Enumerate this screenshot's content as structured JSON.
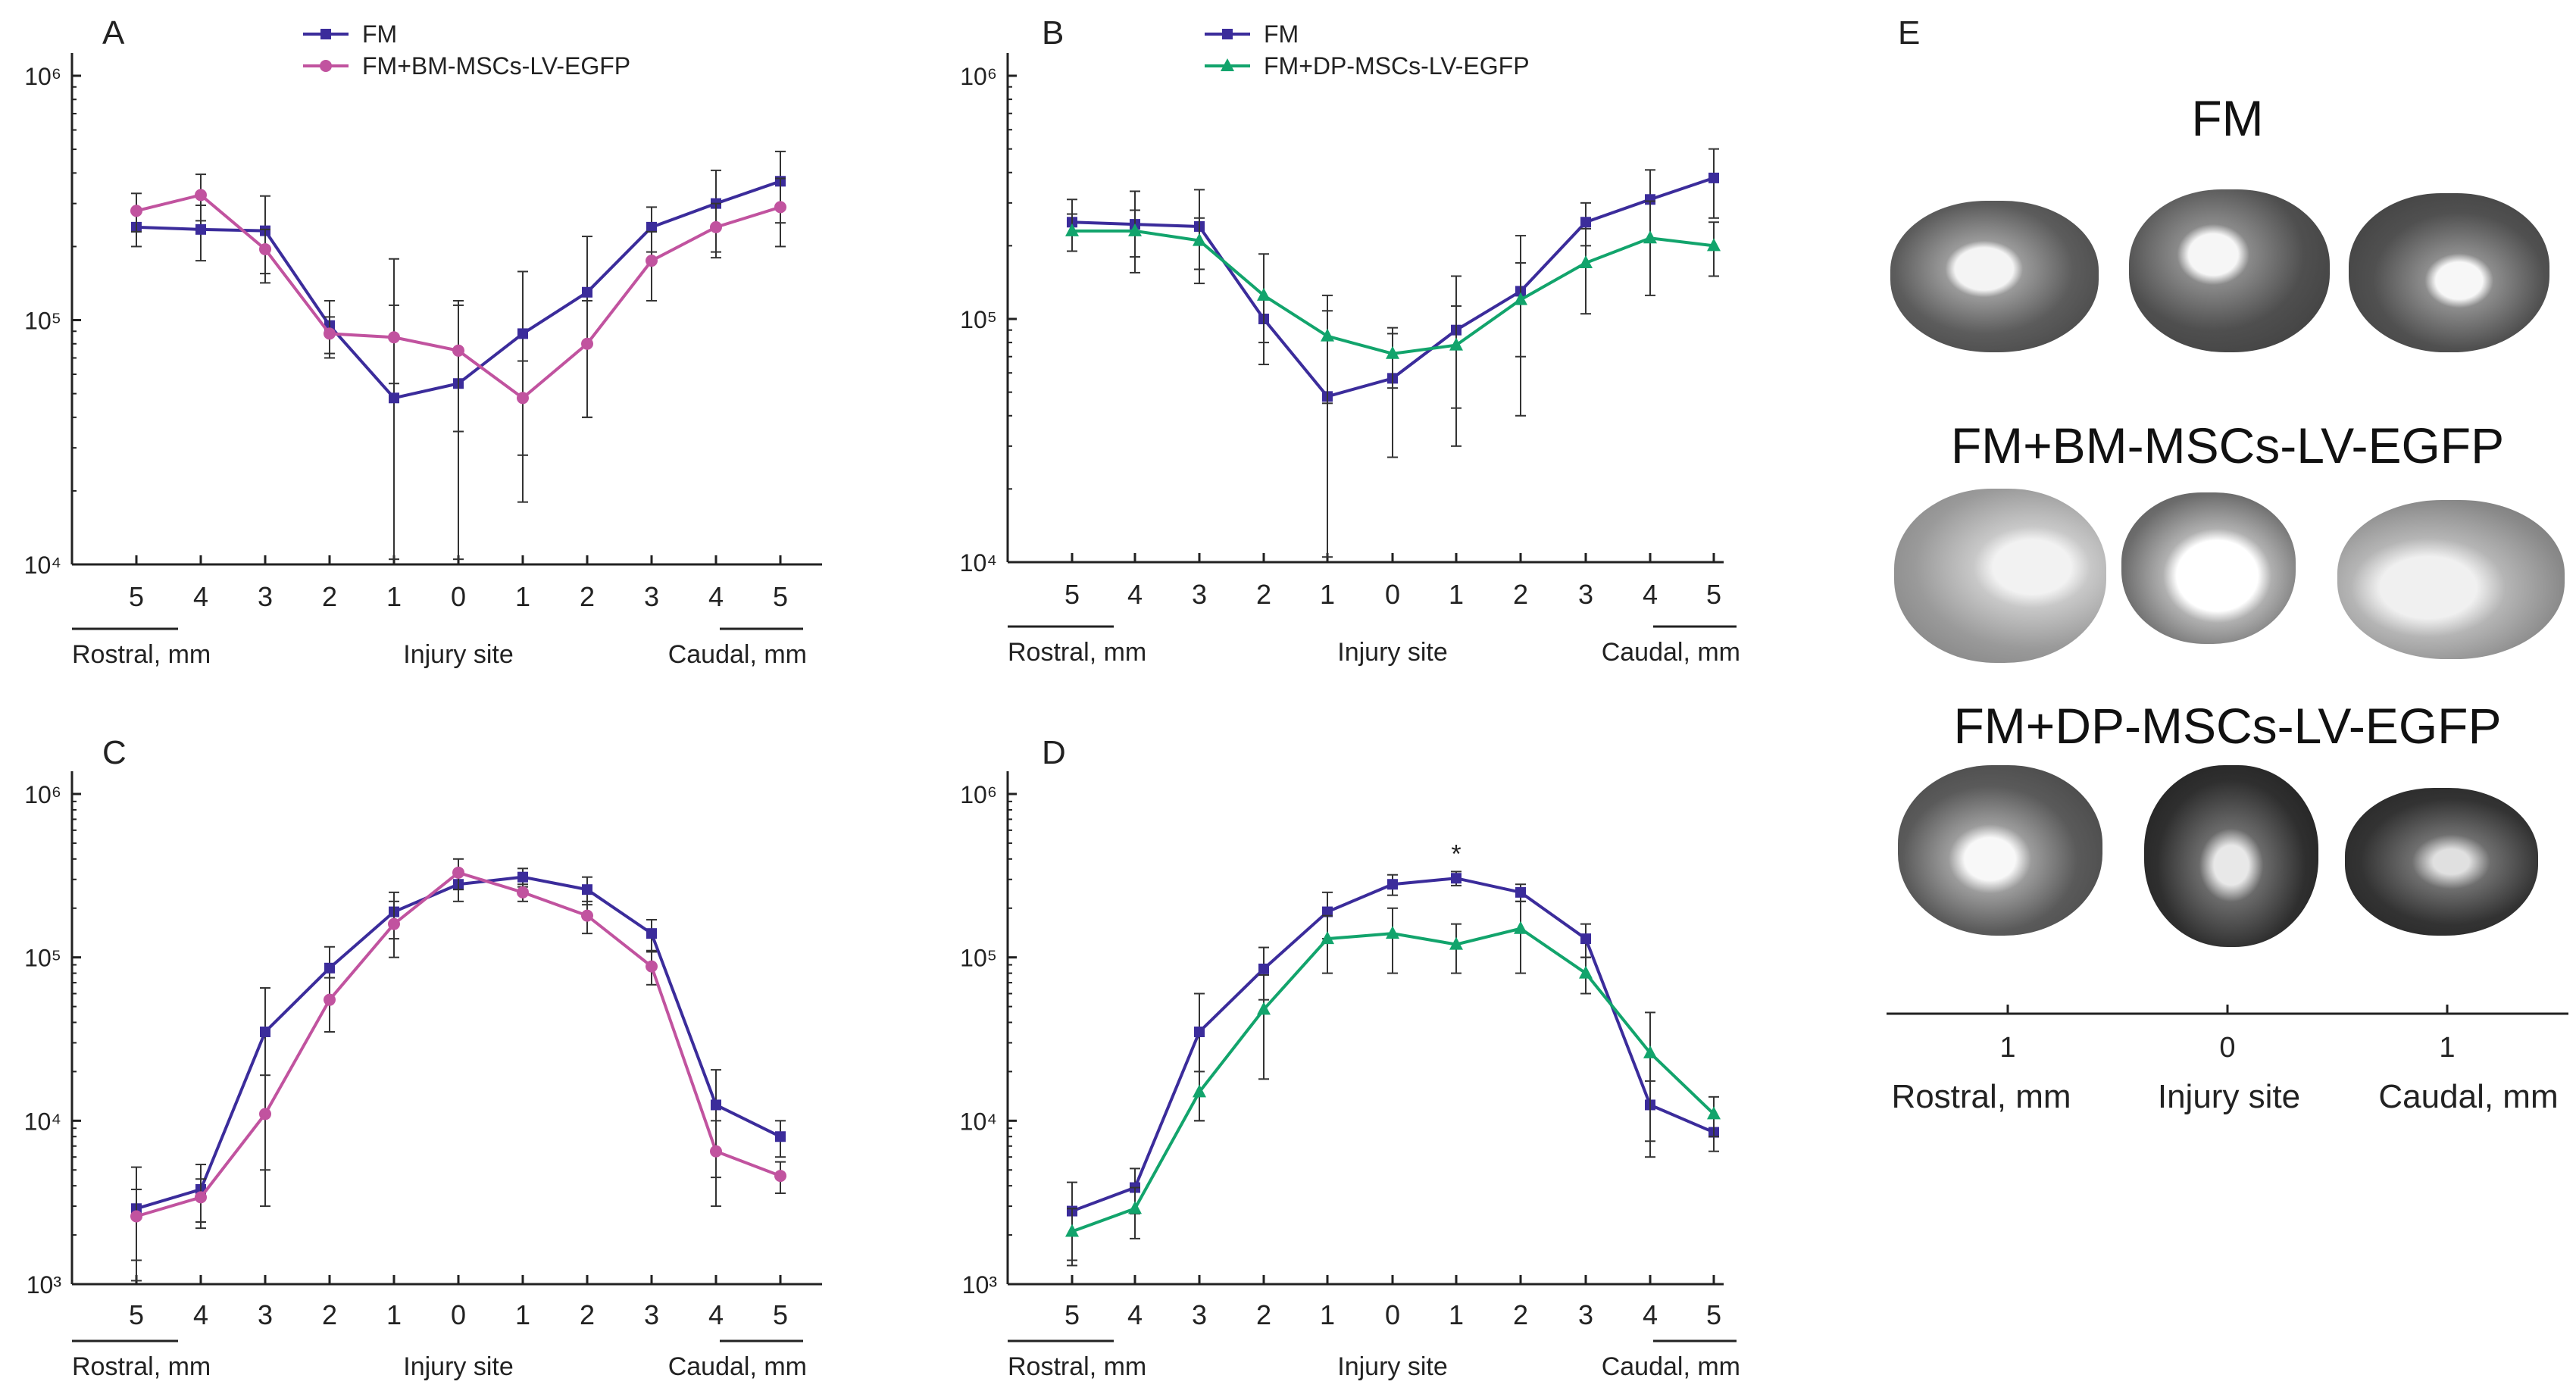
{
  "colors": {
    "fm": "#3b2c9b",
    "bm": "#c1539f",
    "dp": "#12a46c",
    "axis": "#222222"
  },
  "x_ticks": [
    "5",
    "4",
    "3",
    "2",
    "1",
    "0",
    "1",
    "2",
    "3",
    "4",
    "5"
  ],
  "x_region_labels": {
    "rostral": "Rostral, mm",
    "injury": "Injury site",
    "caudal": "Caudal, mm"
  },
  "chart_data": [
    {
      "panel": "A",
      "type": "line",
      "yscale": "log",
      "ylim": [
        10000,
        1000000
      ],
      "ytick_labels": [
        "10⁴",
        "10⁵",
        "10⁶"
      ],
      "ytick_values": [
        10000,
        100000,
        1000000
      ],
      "legend": [
        "FM",
        "FM+BM-MSCs-LV-EGFP"
      ],
      "series": [
        {
          "name": "FM",
          "color_key": "fm",
          "marker": "square",
          "values": [
            240000,
            235000,
            232000,
            95000,
            48000,
            55000,
            88000,
            130000,
            240000,
            300000,
            370000
          ],
          "errors": [
            40000,
            60000,
            90000,
            25000,
            130000,
            65000,
            70000,
            90000,
            50000,
            110000,
            120000
          ]
        },
        {
          "name": "FM+BM-MSCs-LV-EGFP",
          "color_key": "bm",
          "marker": "circle",
          "values": [
            280000,
            325000,
            195000,
            88000,
            85000,
            75000,
            48000,
            80000,
            175000,
            240000,
            290000
          ],
          "errors": [
            50000,
            70000,
            40000,
            15000,
            30000,
            40000,
            20000,
            40000,
            55000,
            60000,
            90000
          ]
        }
      ]
    },
    {
      "panel": "B",
      "type": "line",
      "yscale": "log",
      "ylim": [
        10000,
        1000000
      ],
      "ytick_labels": [
        "10⁴",
        "10⁵",
        "10⁶"
      ],
      "ytick_values": [
        10000,
        100000,
        1000000
      ],
      "legend": [
        "FM",
        "FM+DP-MSCs-LV-EGFP"
      ],
      "series": [
        {
          "name": "FM",
          "color_key": "fm",
          "marker": "square",
          "values": [
            250000,
            245000,
            240000,
            100000,
            48000,
            57000,
            90000,
            130000,
            250000,
            310000,
            380000
          ],
          "errors": [
            60000,
            90000,
            100000,
            20000,
            60000,
            30000,
            60000,
            90000,
            50000,
            100000,
            120000
          ]
        },
        {
          "name": "FM+DP-MSCs-LV-EGFP",
          "color_key": "dp",
          "marker": "triangle",
          "values": [
            230000,
            230000,
            210000,
            125000,
            85000,
            72000,
            78000,
            120000,
            170000,
            215000,
            200000
          ],
          "errors": [
            40000,
            50000,
            50000,
            60000,
            40000,
            20000,
            35000,
            50000,
            65000,
            90000,
            50000
          ]
        }
      ]
    },
    {
      "panel": "C",
      "type": "line",
      "yscale": "log",
      "ylim": [
        1000,
        1000000
      ],
      "ytick_labels": [
        "10³",
        "10⁴",
        "10⁵",
        "10⁶"
      ],
      "ytick_values": [
        1000,
        10000,
        100000,
        1000000
      ],
      "legend": [],
      "series": [
        {
          "name": "FM",
          "color_key": "fm",
          "marker": "square",
          "values": [
            2900,
            3800,
            35000,
            86000,
            190000,
            280000,
            310000,
            260000,
            140000,
            12500,
            8000
          ],
          "errors": [
            2300,
            1600,
            30000,
            30000,
            60000,
            60000,
            40000,
            50000,
            30000,
            8000,
            2000
          ]
        },
        {
          "name": "FM+BM-MSCs-LV-EGFP",
          "color_key": "bm",
          "marker": "circle",
          "values": [
            2600,
            3400,
            11000,
            55000,
            160000,
            330000,
            250000,
            180000,
            88000,
            6500,
            4600
          ],
          "errors": [
            1200,
            1000,
            8000,
            20000,
            60000,
            70000,
            30000,
            40000,
            20000,
            3500,
            1000
          ]
        }
      ]
    },
    {
      "panel": "D",
      "type": "line",
      "yscale": "log",
      "ylim": [
        1000,
        1000000
      ],
      "ytick_labels": [
        "10³",
        "10⁴",
        "10⁵",
        "10⁶"
      ],
      "ytick_values": [
        1000,
        10000,
        100000,
        1000000
      ],
      "legend": [],
      "annotation": {
        "text": "*",
        "x_index": 6
      },
      "series": [
        {
          "name": "FM",
          "color_key": "fm",
          "marker": "square",
          "values": [
            2800,
            3900,
            35000,
            85000,
            190000,
            280000,
            305000,
            250000,
            130000,
            12500,
            8500
          ],
          "errors": [
            1400,
            1200,
            25000,
            30000,
            60000,
            40000,
            30000,
            30000,
            30000,
            5000,
            2000
          ]
        },
        {
          "name": "FM+DP-MSCs-LV-EGFP",
          "color_key": "dp",
          "marker": "triangle",
          "values": [
            2100,
            2900,
            15000,
            48000,
            130000,
            140000,
            120000,
            150000,
            80000,
            26000,
            11000
          ],
          "errors": [
            800,
            1000,
            5000,
            30000,
            50000,
            60000,
            40000,
            70000,
            20000,
            20000,
            3000
          ]
        }
      ]
    }
  ],
  "panel_e": {
    "letter": "E",
    "titles": [
      "FM",
      "FM+BM-MSCs-LV-EGFP",
      "FM+DP-MSCs-LV-EGFP"
    ],
    "ticks": [
      "1",
      "0",
      "1"
    ],
    "axis_labels": [
      "Rostral, mm",
      "Injury site",
      "Caudal, mm"
    ]
  }
}
